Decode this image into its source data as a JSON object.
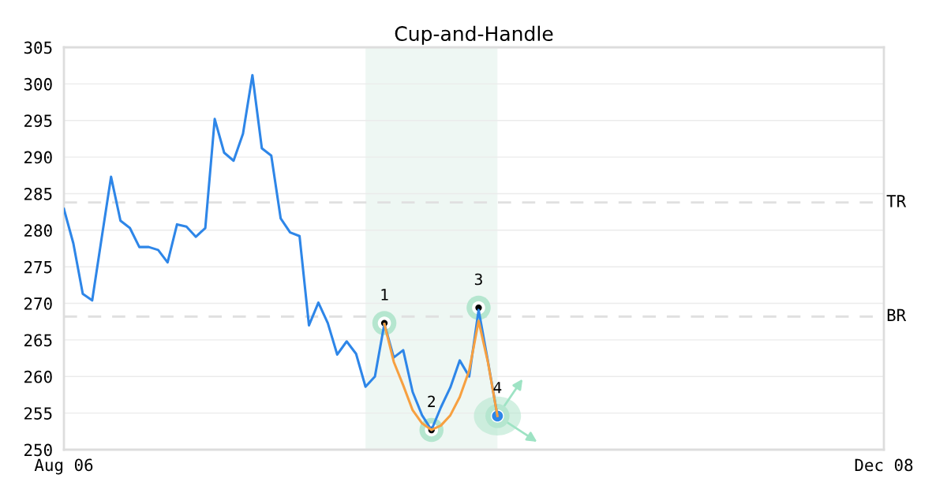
{
  "chart_data": {
    "type": "line",
    "title": "Cup-and-Handle",
    "series": [
      {
        "color": "#2e86e8",
        "values": [
          282.9,
          278.2,
          271.3,
          270.4,
          278.9,
          287.3,
          281.3,
          280.3,
          277.7,
          277.7,
          277.3,
          275.6,
          280.8,
          280.5,
          279.1,
          280.3,
          295.2,
          290.6,
          289.5,
          293.2,
          301.2,
          291.2,
          290.2,
          281.6,
          279.7,
          279.2,
          267.0,
          270.1,
          267.3,
          263.0,
          264.8,
          263.1,
          258.6,
          260.0,
          267.2,
          262.6,
          263.6,
          257.9,
          254.7,
          252.7,
          255.8,
          258.5,
          262.2,
          260.0,
          269.1,
          262.0,
          254.6,
          null,
          null,
          null,
          null,
          null,
          null,
          null,
          null,
          null,
          null,
          null,
          null,
          null,
          null,
          null,
          null,
          null,
          null,
          null,
          null,
          null,
          null,
          null,
          null,
          null,
          null,
          null,
          null,
          null,
          null,
          null,
          null,
          null,
          null,
          null,
          null,
          null,
          null,
          null,
          null,
          null
        ]
      },
      {
        "color": "#f7a040",
        "values": [
          null,
          null,
          null,
          null,
          null,
          null,
          null,
          null,
          null,
          null,
          null,
          null,
          null,
          null,
          null,
          null,
          null,
          null,
          null,
          null,
          null,
          null,
          null,
          null,
          null,
          null,
          null,
          null,
          null,
          null,
          null,
          null,
          null,
          null,
          267.2,
          262.0,
          258.8,
          255.4,
          253.6,
          252.7,
          253.3,
          254.7,
          257.2,
          260.8,
          267.6,
          261.9,
          254.6,
          null,
          null,
          null,
          null,
          null,
          null,
          null,
          null,
          null,
          null,
          null,
          null,
          null,
          null,
          null,
          null,
          null,
          null,
          null,
          null,
          null,
          null,
          null,
          null,
          null,
          null,
          null,
          null,
          null,
          null,
          null,
          null,
          null,
          null,
          null,
          null,
          null,
          null,
          null,
          null,
          null
        ]
      }
    ],
    "categories": [
      "Aug 06",
      null,
      null,
      null,
      null,
      null,
      null,
      null,
      null,
      null,
      null,
      null,
      null,
      null,
      null,
      null,
      null,
      null,
      null,
      null,
      null,
      null,
      null,
      null,
      null,
      null,
      null,
      null,
      null,
      null,
      null,
      null,
      null,
      null,
      null,
      null,
      null,
      null,
      null,
      null,
      null,
      null,
      null,
      null,
      null,
      null,
      null,
      null,
      null,
      null,
      null,
      null,
      null,
      null,
      null,
      null,
      null,
      null,
      null,
      null,
      null,
      null,
      null,
      null,
      null,
      null,
      null,
      null,
      null,
      null,
      null,
      null,
      null,
      null,
      null,
      null,
      null,
      null,
      null,
      null,
      null,
      null,
      null,
      null,
      null,
      null,
      null,
      "Dec 08"
    ],
    "ylim": [
      250,
      305
    ],
    "yticks": [
      250,
      255,
      260,
      265,
      270,
      275,
      280,
      285,
      290,
      295,
      300,
      305
    ],
    "grid": "y",
    "ref_lines": [
      {
        "axis": "y",
        "value": 283.8,
        "label": "TR",
        "color": "#e0e0e0",
        "line_style": "dashed"
      },
      {
        "axis": "y",
        "value": 268.2,
        "label": "BR",
        "color": "#e0e0e0",
        "line_style": "dashed"
      }
    ],
    "annotations": [
      {
        "text": "1",
        "y": 267.3
      },
      {
        "text": "2",
        "y": 252.7
      },
      {
        "text": "3",
        "y": 269.4
      },
      {
        "text": "4",
        "y": 254.6
      }
    ]
  }
}
